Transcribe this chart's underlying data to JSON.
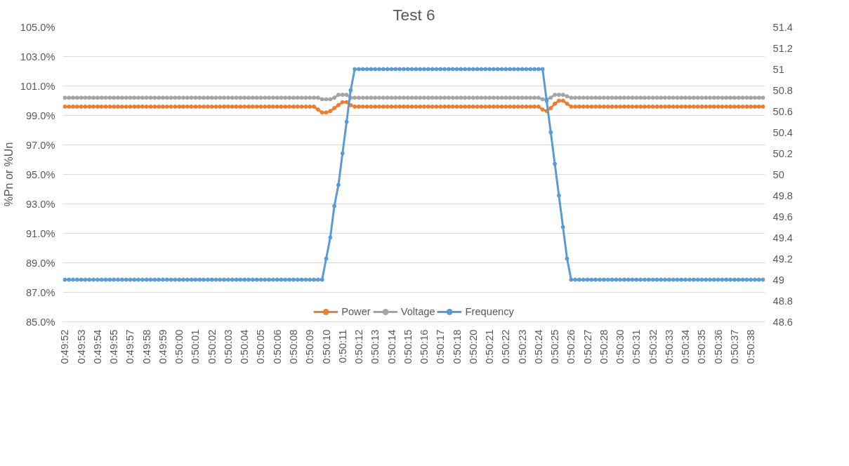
{
  "chart_data": {
    "type": "line",
    "title": "Test 6",
    "ylabel": "%Pn or %Un",
    "categories": [
      "0:49:52",
      null,
      null,
      null,
      "0:49:53",
      null,
      null,
      null,
      "0:49:54",
      null,
      null,
      null,
      "0:49:55",
      null,
      null,
      null,
      "0:49:57",
      null,
      null,
      null,
      "0:49:58",
      null,
      null,
      null,
      "0:49:59",
      null,
      null,
      null,
      "0:50:00",
      null,
      null,
      null,
      "0:50:01",
      null,
      null,
      null,
      "0:50:02",
      null,
      null,
      null,
      "0:50:03",
      null,
      null,
      null,
      "0:50:04",
      null,
      null,
      null,
      "0:50:05",
      null,
      null,
      null,
      "0:50:06",
      null,
      null,
      null,
      "0:50:08",
      null,
      null,
      null,
      "0:50:09",
      null,
      null,
      null,
      "0:50:10",
      null,
      null,
      null,
      "0:50:11",
      null,
      null,
      null,
      "0:50:12",
      null,
      null,
      null,
      "0:50:13",
      null,
      null,
      null,
      "0:50:14",
      null,
      null,
      null,
      "0:50:15",
      null,
      null,
      null,
      "0:50:16",
      null,
      null,
      null,
      "0:50:17",
      null,
      null,
      null,
      "0:50:18",
      null,
      null,
      null,
      "0:50:20",
      null,
      null,
      null,
      "0:50:21",
      null,
      null,
      null,
      "0:50:22",
      null,
      null,
      null,
      "0:50:23",
      null,
      null,
      null,
      "0:50:24",
      null,
      null,
      null,
      "0:50:25",
      null,
      null,
      null,
      "0:50:26",
      null,
      null,
      null,
      "0:50:27",
      null,
      null,
      null,
      "0:50:28",
      null,
      null,
      null,
      "0:50:30",
      null,
      null,
      null,
      "0:50:31",
      null,
      null,
      null,
      "0:50:32",
      null,
      null,
      null,
      "0:50:33",
      null,
      null,
      null,
      "0:50:34",
      null,
      null,
      null,
      "0:50:35",
      null,
      null,
      null,
      "0:50:36",
      null,
      null,
      null,
      "0:50:37",
      null,
      null,
      null,
      "0:50:38",
      null,
      null,
      null
    ],
    "series": [
      {
        "name": "Power",
        "color": "#ed7d31",
        "values": [
          99.6,
          99.6,
          99.6,
          99.6,
          99.6,
          99.6,
          99.6,
          99.6,
          99.6,
          99.6,
          99.6,
          99.6,
          99.6,
          99.6,
          99.6,
          99.6,
          99.6,
          99.6,
          99.6,
          99.6,
          99.6,
          99.6,
          99.6,
          99.6,
          99.6,
          99.6,
          99.6,
          99.6,
          99.6,
          99.6,
          99.6,
          99.6,
          99.6,
          99.6,
          99.6,
          99.6,
          99.6,
          99.6,
          99.6,
          99.6,
          99.6,
          99.6,
          99.6,
          99.6,
          99.6,
          99.6,
          99.6,
          99.6,
          99.6,
          99.6,
          99.6,
          99.6,
          99.6,
          99.6,
          99.6,
          99.6,
          99.6,
          99.6,
          99.6,
          99.6,
          99.6,
          99.6,
          99.4,
          99.2,
          99.2,
          99.3,
          99.5,
          99.7,
          99.9,
          99.9,
          99.7,
          99.6,
          99.6,
          99.6,
          99.6,
          99.6,
          99.6,
          99.6,
          99.6,
          99.6,
          99.6,
          99.6,
          99.6,
          99.6,
          99.6,
          99.6,
          99.6,
          99.6,
          99.6,
          99.6,
          99.6,
          99.6,
          99.6,
          99.6,
          99.6,
          99.6,
          99.6,
          99.6,
          99.6,
          99.6,
          99.6,
          99.6,
          99.6,
          99.6,
          99.6,
          99.6,
          99.6,
          99.6,
          99.6,
          99.6,
          99.6,
          99.6,
          99.6,
          99.6,
          99.6,
          99.6,
          99.6,
          99.4,
          99.3,
          99.5,
          99.8,
          100,
          100,
          99.8,
          99.6,
          99.6,
          99.6,
          99.6,
          99.6,
          99.6,
          99.6,
          99.6,
          99.6,
          99.6,
          99.6,
          99.6,
          99.6,
          99.6,
          99.6,
          99.6,
          99.6,
          99.6,
          99.6,
          99.6,
          99.6,
          99.6,
          99.6,
          99.6,
          99.6,
          99.6,
          99.6,
          99.6,
          99.6,
          99.6,
          99.6,
          99.6,
          99.6,
          99.6,
          99.6,
          99.6,
          99.6,
          99.6,
          99.6,
          99.6,
          99.6,
          99.6,
          99.6,
          99.6,
          99.6,
          99.6,
          99.6,
          99.6
        ]
      },
      {
        "name": "Voltage",
        "color": "#a5a5a5",
        "values": [
          100.2,
          100.2,
          100.2,
          100.2,
          100.2,
          100.2,
          100.2,
          100.2,
          100.2,
          100.2,
          100.2,
          100.2,
          100.2,
          100.2,
          100.2,
          100.2,
          100.2,
          100.2,
          100.2,
          100.2,
          100.2,
          100.2,
          100.2,
          100.2,
          100.2,
          100.2,
          100.2,
          100.2,
          100.2,
          100.2,
          100.2,
          100.2,
          100.2,
          100.2,
          100.2,
          100.2,
          100.2,
          100.2,
          100.2,
          100.2,
          100.2,
          100.2,
          100.2,
          100.2,
          100.2,
          100.2,
          100.2,
          100.2,
          100.2,
          100.2,
          100.2,
          100.2,
          100.2,
          100.2,
          100.2,
          100.2,
          100.2,
          100.2,
          100.2,
          100.2,
          100.2,
          100.2,
          100.2,
          100.1,
          100.1,
          100.1,
          100.2,
          100.4,
          100.4,
          100.4,
          100.2,
          100.2,
          100.2,
          100.2,
          100.2,
          100.2,
          100.2,
          100.2,
          100.2,
          100.2,
          100.2,
          100.2,
          100.2,
          100.2,
          100.2,
          100.2,
          100.2,
          100.2,
          100.2,
          100.2,
          100.2,
          100.2,
          100.2,
          100.2,
          100.2,
          100.2,
          100.2,
          100.2,
          100.2,
          100.2,
          100.2,
          100.2,
          100.2,
          100.2,
          100.2,
          100.2,
          100.2,
          100.2,
          100.2,
          100.2,
          100.2,
          100.2,
          100.2,
          100.2,
          100.2,
          100.2,
          100.2,
          100.1,
          100.1,
          100.2,
          100.4,
          100.4,
          100.4,
          100.3,
          100.2,
          100.2,
          100.2,
          100.2,
          100.2,
          100.2,
          100.2,
          100.2,
          100.2,
          100.2,
          100.2,
          100.2,
          100.2,
          100.2,
          100.2,
          100.2,
          100.2,
          100.2,
          100.2,
          100.2,
          100.2,
          100.2,
          100.2,
          100.2,
          100.2,
          100.2,
          100.2,
          100.2,
          100.2,
          100.2,
          100.2,
          100.2,
          100.2,
          100.2,
          100.2,
          100.2,
          100.2,
          100.2,
          100.2,
          100.2,
          100.2,
          100.2,
          100.2,
          100.2,
          100.2,
          100.2,
          100.2,
          100.2
        ]
      },
      {
        "name": "Frequency",
        "color": "#5b9bd5",
        "axis": "y2",
        "values": [
          49,
          49,
          49,
          49,
          49,
          49,
          49,
          49,
          49,
          49,
          49,
          49,
          49,
          49,
          49,
          49,
          49,
          49,
          49,
          49,
          49,
          49,
          49,
          49,
          49,
          49,
          49,
          49,
          49,
          49,
          49,
          49,
          49,
          49,
          49,
          49,
          49,
          49,
          49,
          49,
          49,
          49,
          49,
          49,
          49,
          49,
          49,
          49,
          49,
          49,
          49,
          49,
          49,
          49,
          49,
          49,
          49,
          49,
          49,
          49,
          49,
          49,
          49,
          49,
          49.2,
          49.4,
          49.7,
          49.9,
          50.2,
          50.5,
          50.8,
          51,
          51,
          51,
          51,
          51,
          51,
          51,
          51,
          51,
          51,
          51,
          51,
          51,
          51,
          51,
          51,
          51,
          51,
          51,
          51,
          51,
          51,
          51,
          51,
          51,
          51,
          51,
          51,
          51,
          51,
          51,
          51,
          51,
          51,
          51,
          51,
          51,
          51,
          51,
          51,
          51,
          51,
          51,
          51,
          51,
          51,
          51,
          50.7,
          50.4,
          50.1,
          49.8,
          49.5,
          49.2,
          49,
          49,
          49,
          49,
          49,
          49,
          49,
          49,
          49,
          49,
          49,
          49,
          49,
          49,
          49,
          49,
          49,
          49,
          49,
          49,
          49,
          49,
          49,
          49,
          49,
          49,
          49,
          49,
          49,
          49,
          49,
          49,
          49,
          49,
          49,
          49,
          49,
          49,
          49,
          49,
          49,
          49,
          49,
          49,
          49,
          49,
          49,
          49
        ]
      }
    ],
    "ylim": [
      85,
      105
    ],
    "yticks": [
      {
        "value": 85,
        "label": "85.0%"
      },
      {
        "value": 87,
        "label": "87.0%"
      },
      {
        "value": 89,
        "label": "89.0%"
      },
      {
        "value": 91,
        "label": "91.0%"
      },
      {
        "value": 93,
        "label": "93.0%"
      },
      {
        "value": 95,
        "label": "95.0%"
      },
      {
        "value": 97,
        "label": "97.0%"
      },
      {
        "value": 99,
        "label": "99.0%"
      },
      {
        "value": 101,
        "label": "101.0%"
      },
      {
        "value": 103,
        "label": "103.0%"
      },
      {
        "value": 105,
        "label": "105.0%"
      }
    ],
    "y2lim": [
      48.6,
      51.4
    ],
    "y2ticks": [
      48.6,
      48.8,
      49,
      49.2,
      49.4,
      49.6,
      49.8,
      50,
      50.2,
      50.4,
      50.6,
      50.8,
      51,
      51.2,
      51.4
    ],
    "grid": "y",
    "legend": "bottom",
    "marker": "circle"
  }
}
